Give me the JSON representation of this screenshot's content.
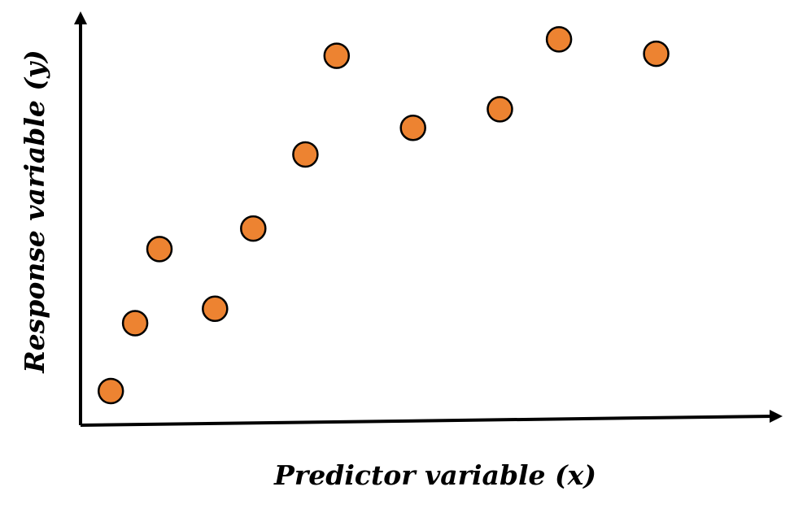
{
  "chart_data": {
    "type": "scatter",
    "xlabel": "Predictor variable (x)",
    "ylabel": "Response variable (y)",
    "xlim": [
      0,
      100
    ],
    "ylim": [
      0,
      100
    ],
    "grid": false,
    "ticks": false,
    "points": [
      {
        "x": 6,
        "y": 8.5
      },
      {
        "x": 9.5,
        "y": 25
      },
      {
        "x": 13,
        "y": 43
      },
      {
        "x": 21,
        "y": 28.5
      },
      {
        "x": 26.5,
        "y": 48
      },
      {
        "x": 34,
        "y": 66
      },
      {
        "x": 38.5,
        "y": 90
      },
      {
        "x": 49.5,
        "y": 72.5
      },
      {
        "x": 62,
        "y": 77
      },
      {
        "x": 70.5,
        "y": 94
      },
      {
        "x": 84.5,
        "y": 90.5
      }
    ],
    "colors": {
      "marker_fill": "#ED8331",
      "marker_edge": "#000000",
      "axis": "#000000"
    }
  }
}
